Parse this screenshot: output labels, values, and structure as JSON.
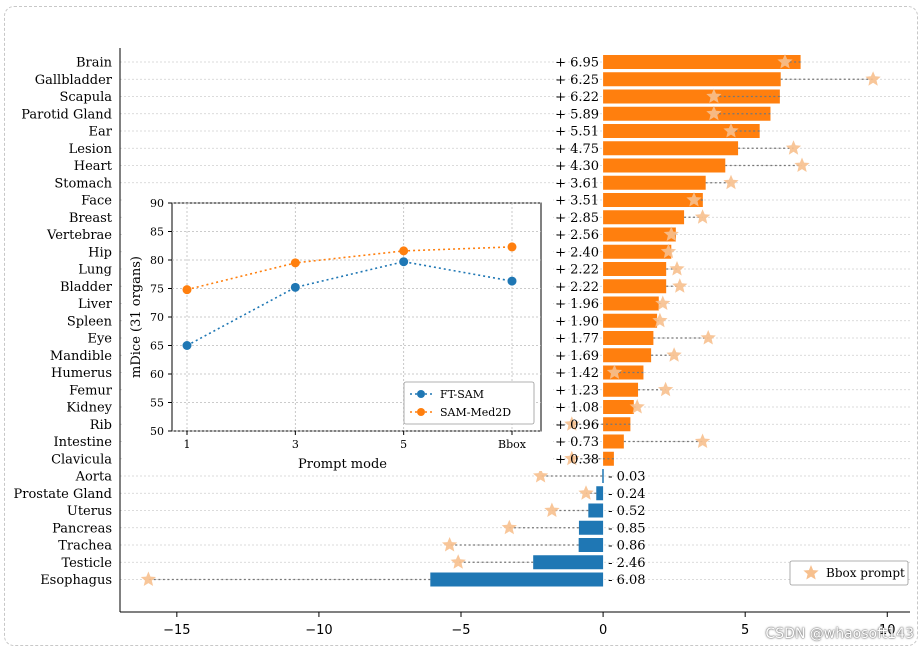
{
  "chart_data": [
    {
      "type": "bar",
      "orientation": "horizontal",
      "categories": [
        "Brain",
        "Gallbladder",
        "Scapula",
        "Parotid Gland",
        "Ear",
        "Lesion",
        "Heart",
        "Stomach",
        "Face",
        "Breast",
        "Vertebrae",
        "Hip",
        "Lung",
        "Bladder",
        "Liver",
        "Spleen",
        "Eye",
        "Mandible",
        "Humerus",
        "Femur",
        "Kidney",
        "Rib",
        "Intestine",
        "Clavicula",
        "Aorta",
        "Prostate Gland",
        "Uterus",
        "Pancreas",
        "Trachea",
        "Testicle",
        "Esophagus"
      ],
      "values": [
        6.95,
        6.25,
        6.22,
        5.89,
        5.51,
        4.75,
        4.3,
        3.61,
        3.51,
        2.85,
        2.56,
        2.4,
        2.22,
        2.22,
        1.96,
        1.9,
        1.77,
        1.69,
        1.42,
        1.23,
        1.08,
        0.96,
        0.73,
        0.38,
        -0.03,
        -0.24,
        -0.52,
        -0.85,
        -0.86,
        -2.46,
        -6.08
      ],
      "value_labels": [
        "+ 6.95",
        "+ 6.25",
        "+ 6.22",
        "+ 5.89",
        "+ 5.51",
        "+ 4.75",
        "+ 4.30",
        "+ 3.61",
        "+ 3.51",
        "+ 2.85",
        "+ 2.56",
        "+ 2.40",
        "+ 2.22",
        "+ 2.22",
        "+ 1.96",
        "+ 1.90",
        "+ 1.77",
        "+ 1.69",
        "+ 1.42",
        "+ 1.23",
        "+ 1.08",
        "+ 0.96",
        "+ 0.73",
        "+ 0.38",
        "- 0.03",
        "- 0.24",
        "- 0.52",
        "- 0.85",
        "- 0.86",
        "- 2.46",
        "- 6.08"
      ],
      "bbox_prompt_values": [
        6.4,
        9.5,
        3.9,
        3.9,
        4.5,
        6.7,
        7.0,
        4.5,
        3.2,
        3.5,
        2.4,
        2.3,
        2.6,
        2.7,
        2.1,
        2.0,
        3.7,
        2.5,
        0.4,
        2.2,
        1.2,
        -1.1,
        3.5,
        -1.1,
        -2.2,
        -0.6,
        -1.8,
        -3.3,
        -5.4,
        -5.1,
        -16.0
      ],
      "xlim": [
        -17,
        10.8
      ],
      "xticks": [
        -15,
        -10,
        -5,
        0,
        5,
        10
      ],
      "xtick_labels": [
        "−15",
        "−10",
        "−5",
        "0",
        "5",
        "10"
      ],
      "positive_color": "#ff7f0e",
      "negative_color": "#1f77b4",
      "star_color": "#f7c08e",
      "legend": {
        "label": "Bbox prompt",
        "position": "lower-right"
      },
      "grid": "horizontal dotted"
    },
    {
      "type": "line",
      "categories": [
        "1",
        "3",
        "5",
        "Bbox"
      ],
      "series": [
        {
          "name": "FT-SAM",
          "values": [
            65.0,
            75.2,
            79.7,
            76.3
          ],
          "color": "#1f77b4"
        },
        {
          "name": "SAM-Med2D",
          "values": [
            74.8,
            79.5,
            81.6,
            82.3
          ],
          "color": "#ff7f0e"
        }
      ],
      "xlabel": "Prompt mode",
      "ylabel": "mDice (31 organs)",
      "ylim": [
        50,
        90
      ],
      "yticks": [
        50,
        55,
        60,
        65,
        70,
        75,
        80,
        85,
        90
      ],
      "grid": "dotted",
      "legend": "lower-right"
    }
  ],
  "watermark": "CSDN @whaosoft143"
}
